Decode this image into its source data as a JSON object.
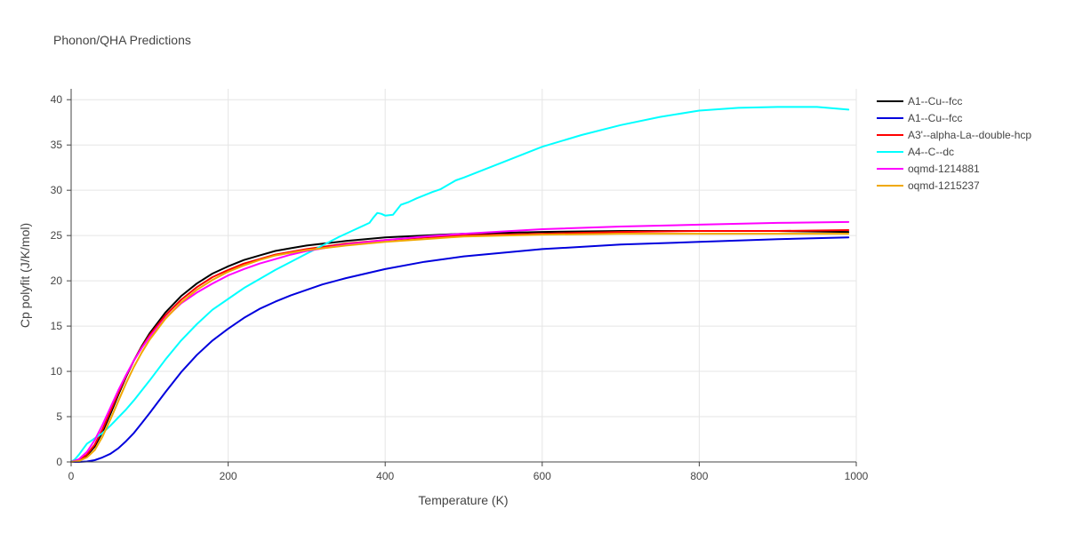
{
  "chart_data": {
    "type": "line",
    "title": "Phonon/QHA Predictions",
    "xlabel": "Temperature (K)",
    "ylabel": "Cp polyfit (J/K/mol)",
    "xlim": [
      0,
      1000
    ],
    "ylim": [
      0,
      41.2
    ],
    "xticks": [
      0,
      200,
      400,
      600,
      800,
      1000
    ],
    "yticks": [
      0,
      5,
      10,
      15,
      20,
      25,
      30,
      35,
      40
    ],
    "grid": true,
    "legend_position": "top-right",
    "series": [
      {
        "name": "A1--Cu--fcc",
        "color": "#000000",
        "x": [
          0,
          10,
          20,
          30,
          40,
          50,
          60,
          70,
          80,
          90,
          100,
          120,
          140,
          160,
          180,
          200,
          220,
          240,
          260,
          280,
          300,
          350,
          400,
          450,
          500,
          600,
          700,
          800,
          900,
          990
        ],
        "y": [
          0,
          0.2,
          0.7,
          1.7,
          3.3,
          5.3,
          7.4,
          9.4,
          11.2,
          12.8,
          14.2,
          16.5,
          18.3,
          19.7,
          20.8,
          21.6,
          22.3,
          22.8,
          23.3,
          23.6,
          23.9,
          24.4,
          24.8,
          25.0,
          25.2,
          25.4,
          25.5,
          25.5,
          25.5,
          25.4
        ]
      },
      {
        "name": "A1--Cu--fcc",
        "color": "#0000dd",
        "x": [
          0,
          10,
          20,
          30,
          40,
          50,
          60,
          70,
          80,
          90,
          100,
          120,
          140,
          160,
          180,
          200,
          220,
          240,
          260,
          280,
          300,
          320,
          350,
          400,
          450,
          500,
          550,
          600,
          700,
          800,
          900,
          990
        ],
        "y": [
          0,
          0,
          0.05,
          0.2,
          0.5,
          0.9,
          1.5,
          2.3,
          3.2,
          4.3,
          5.4,
          7.7,
          9.9,
          11.8,
          13.4,
          14.7,
          15.9,
          16.9,
          17.7,
          18.4,
          19.0,
          19.6,
          20.3,
          21.3,
          22.1,
          22.7,
          23.1,
          23.5,
          24.0,
          24.3,
          24.6,
          24.8
        ]
      },
      {
        "name": "A3'--alpha-La--double-hcp",
        "color": "#ff0000",
        "x": [
          0,
          10,
          20,
          30,
          40,
          50,
          60,
          70,
          80,
          90,
          100,
          120,
          140,
          160,
          180,
          200,
          220,
          240,
          260,
          280,
          300,
          350,
          400,
          450,
          500,
          600,
          700,
          800,
          900,
          990
        ],
        "y": [
          0,
          0.2,
          0.8,
          1.9,
          3.6,
          5.6,
          7.6,
          9.5,
          11.2,
          12.7,
          14.0,
          16.2,
          17.9,
          19.3,
          20.4,
          21.2,
          21.9,
          22.4,
          22.9,
          23.2,
          23.5,
          24.1,
          24.5,
          24.8,
          25.0,
          25.2,
          25.4,
          25.5,
          25.5,
          25.6
        ]
      },
      {
        "name": "A4--C--dc",
        "color": "#00ffff",
        "x": [
          0,
          5,
          10,
          15,
          20,
          30,
          40,
          50,
          60,
          70,
          80,
          100,
          120,
          140,
          160,
          180,
          200,
          220,
          240,
          260,
          280,
          300,
          320,
          340,
          360,
          380,
          385,
          390,
          395,
          400,
          410,
          420,
          430,
          440,
          460,
          470,
          480,
          490,
          500,
          550,
          600,
          650,
          700,
          750,
          800,
          850,
          900,
          950,
          990
        ],
        "y": [
          0,
          0.3,
          0.8,
          1.4,
          2.0,
          2.6,
          3.2,
          4.0,
          4.9,
          5.8,
          6.8,
          9.0,
          11.3,
          13.4,
          15.2,
          16.8,
          18.0,
          19.2,
          20.2,
          21.2,
          22.1,
          23.0,
          23.9,
          24.8,
          25.6,
          26.4,
          27.0,
          27.5,
          27.4,
          27.2,
          27.3,
          28.4,
          28.7,
          29.1,
          29.8,
          30.1,
          30.6,
          31.1,
          31.4,
          33.1,
          34.8,
          36.1,
          37.2,
          38.1,
          38.8,
          39.1,
          39.2,
          39.2,
          38.9
        ]
      },
      {
        "name": "oqmd-1214881",
        "color": "#ff00ff",
        "x": [
          0,
          10,
          20,
          30,
          40,
          50,
          60,
          70,
          80,
          90,
          100,
          120,
          140,
          160,
          180,
          200,
          220,
          240,
          260,
          280,
          300,
          350,
          400,
          450,
          500,
          600,
          700,
          800,
          900,
          990
        ],
        "y": [
          0,
          0.3,
          1.1,
          2.4,
          4.1,
          6.0,
          7.9,
          9.6,
          11.2,
          12.6,
          13.8,
          15.9,
          17.5,
          18.7,
          19.7,
          20.6,
          21.3,
          21.9,
          22.4,
          22.9,
          23.3,
          24.0,
          24.5,
          24.9,
          25.2,
          25.7,
          26.0,
          26.2,
          26.4,
          26.5
        ]
      },
      {
        "name": "oqmd-1215237",
        "color": "#f0a800",
        "x": [
          0,
          10,
          20,
          30,
          40,
          50,
          60,
          70,
          80,
          90,
          100,
          120,
          140,
          160,
          180,
          200,
          220,
          240,
          260,
          280,
          300,
          350,
          400,
          450,
          500,
          600,
          700,
          800,
          900,
          990
        ],
        "y": [
          0,
          0.1,
          0.5,
          1.3,
          2.8,
          4.7,
          6.7,
          8.7,
          10.5,
          12.1,
          13.5,
          15.8,
          17.6,
          19.0,
          20.1,
          21.0,
          21.7,
          22.3,
          22.8,
          23.1,
          23.4,
          23.9,
          24.3,
          24.6,
          24.9,
          25.1,
          25.2,
          25.2,
          25.2,
          25.2
        ]
      }
    ]
  }
}
